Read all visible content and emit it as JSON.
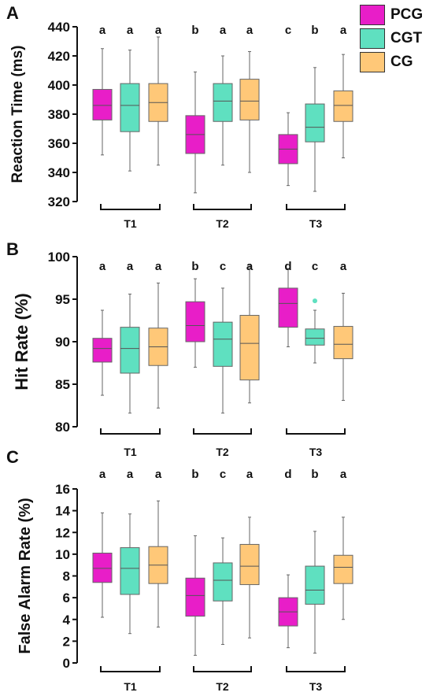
{
  "colors": {
    "PCG": "#e81ec8",
    "CGT": "#5fe0c0",
    "CG": "#ffc878",
    "text": "#111111"
  },
  "legend": [
    "PCG",
    "CGT",
    "CG"
  ],
  "chart_data": [
    {
      "type": "box",
      "panel": "A",
      "ylabel": "Reaction Time (ms)",
      "ylim": [
        320,
        440
      ],
      "yticks": [
        320,
        340,
        360,
        380,
        400,
        420,
        440
      ],
      "groups": [
        "T1",
        "T2",
        "T3"
      ],
      "series_names": [
        "PCG",
        "CGT",
        "CG"
      ],
      "boxes": [
        [
          {
            "min": 352,
            "q1": 376,
            "median": 386,
            "q3": 397,
            "max": 425,
            "letter": "a"
          },
          {
            "min": 341,
            "q1": 368,
            "median": 386,
            "q3": 401,
            "max": 424,
            "letter": "a"
          },
          {
            "min": 345,
            "q1": 375,
            "median": 388,
            "q3": 401,
            "max": 433,
            "letter": "a"
          }
        ],
        [
          {
            "min": 326,
            "q1": 353,
            "median": 366,
            "q3": 379,
            "max": 409,
            "letter": "b"
          },
          {
            "min": 345,
            "q1": 375,
            "median": 389,
            "q3": 401,
            "max": 420,
            "letter": "a"
          },
          {
            "min": 340,
            "q1": 376,
            "median": 389,
            "q3": 404,
            "max": 423,
            "letter": "a"
          }
        ],
        [
          {
            "min": 331,
            "q1": 346,
            "median": 356,
            "q3": 366,
            "max": 381,
            "letter": "c"
          },
          {
            "min": 327,
            "q1": 361,
            "median": 371,
            "q3": 387,
            "max": 412,
            "letter": "b"
          },
          {
            "min": 350,
            "q1": 375,
            "median": 386,
            "q3": 396,
            "max": 421,
            "letter": "a"
          }
        ]
      ]
    },
    {
      "type": "box",
      "panel": "B",
      "ylabel": "Hit Rate (%)",
      "ylim": [
        80,
        100
      ],
      "yticks": [
        80,
        85,
        90,
        95,
        100
      ],
      "groups": [
        "T1",
        "T2",
        "T3"
      ],
      "series_names": [
        "PCG",
        "CGT",
        "CG"
      ],
      "boxes": [
        [
          {
            "min": 83.7,
            "q1": 87.6,
            "median": 89.2,
            "q3": 90.4,
            "max": 93.7,
            "letter": "a"
          },
          {
            "min": 81.6,
            "q1": 86.3,
            "median": 89.2,
            "q3": 91.7,
            "max": 95.6,
            "letter": "a"
          },
          {
            "min": 82.2,
            "q1": 87.2,
            "median": 89.4,
            "q3": 91.6,
            "max": 96.9,
            "letter": "a"
          }
        ],
        [
          {
            "min": 87.0,
            "q1": 90.0,
            "median": 91.9,
            "q3": 94.7,
            "max": 97.4,
            "letter": "b"
          },
          {
            "min": 81.6,
            "q1": 87.1,
            "median": 90.3,
            "q3": 92.3,
            "max": 96.3,
            "letter": "c"
          },
          {
            "min": 82.8,
            "q1": 85.5,
            "median": 89.8,
            "q3": 93.1,
            "max": 99.1,
            "letter": "a"
          }
        ],
        [
          {
            "min": 89.4,
            "q1": 91.7,
            "median": 94.5,
            "q3": 96.3,
            "max": 98.6,
            "letter": "d"
          },
          {
            "min": 87.5,
            "q1": 89.6,
            "median": 90.4,
            "q3": 91.5,
            "max": 93.7,
            "letter": "c",
            "outliers": [
              94.8
            ]
          },
          {
            "min": 83.1,
            "q1": 88.0,
            "median": 89.7,
            "q3": 91.8,
            "max": 95.7,
            "letter": "a"
          }
        ]
      ]
    },
    {
      "type": "box",
      "panel": "C",
      "ylabel": "False Alarm Rate (%)",
      "ylim": [
        0,
        16
      ],
      "yticks": [
        0,
        2,
        4,
        6,
        8,
        10,
        12,
        14,
        16
      ],
      "groups": [
        "T1",
        "T2",
        "T3"
      ],
      "series_names": [
        "PCG",
        "CGT",
        "CG"
      ],
      "boxes": [
        [
          {
            "min": 4.2,
            "q1": 7.4,
            "median": 8.7,
            "q3": 10.1,
            "max": 13.8,
            "letter": "a"
          },
          {
            "min": 2.7,
            "q1": 6.3,
            "median": 8.7,
            "q3": 10.6,
            "max": 13.7,
            "letter": "a"
          },
          {
            "min": 3.3,
            "q1": 7.3,
            "median": 9.0,
            "q3": 10.7,
            "max": 14.9,
            "letter": "a"
          }
        ],
        [
          {
            "min": 0.7,
            "q1": 4.3,
            "median": 6.2,
            "q3": 7.8,
            "max": 11.7,
            "letter": "b"
          },
          {
            "min": 1.7,
            "q1": 5.7,
            "median": 7.6,
            "q3": 9.2,
            "max": 11.5,
            "letter": "c"
          },
          {
            "min": 2.3,
            "q1": 7.2,
            "median": 8.9,
            "q3": 10.9,
            "max": 13.4,
            "letter": "a"
          }
        ],
        [
          {
            "min": 1.4,
            "q1": 3.4,
            "median": 4.7,
            "q3": 6.0,
            "max": 8.1,
            "letter": "d"
          },
          {
            "min": 0.9,
            "q1": 5.4,
            "median": 6.7,
            "q3": 8.9,
            "max": 12.1,
            "letter": "b"
          },
          {
            "min": 4.0,
            "q1": 7.3,
            "median": 8.8,
            "q3": 9.9,
            "max": 13.4,
            "letter": "a"
          }
        ]
      ]
    }
  ]
}
